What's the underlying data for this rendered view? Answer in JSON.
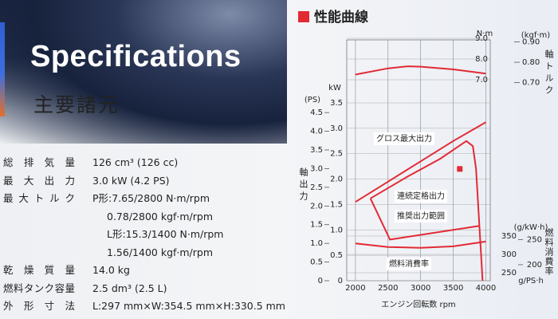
{
  "header": {
    "title": "Specifications",
    "subtitle": "主要諸元"
  },
  "specs": [
    {
      "label": "総排気量",
      "values": [
        "126 cm³ (126 cc)"
      ]
    },
    {
      "label": "最大出力",
      "values": [
        "3.0 kW (4.2 PS)"
      ]
    },
    {
      "label": "最大トルク",
      "values": [
        "P形:7.65/2800 N·m/rpm",
        "0.78/2800 kgf·m/rpm",
        "L形:15.3/1400 N·m/rpm",
        "1.56/1400 kgf·m/rpm"
      ]
    },
    {
      "label": "乾燥質量",
      "values": [
        "14.0 kg"
      ]
    },
    {
      "label": "燃料タンク容量",
      "values": [
        "2.5 dm³ (2.5 L)"
      ]
    },
    {
      "label": "外形寸法",
      "values": [
        "L:297 mm×W:354.5 mm×H:330.5 mm"
      ]
    }
  ],
  "chart_data": {
    "type": "line",
    "title": "性能曲線",
    "x_label": "エンジン回転数 rpm",
    "xlim": [
      1867,
      4067
    ],
    "xticks": [
      2000,
      2500,
      3000,
      3500,
      4000
    ],
    "grid": true,
    "power_axis": {
      "label": "軸出力",
      "unit": "kW",
      "lim": [
        0,
        3.5
      ],
      "ticks": [
        0,
        0.5,
        {
          "value": 1,
          "label": "1.0"
        },
        1.5,
        {
          "value": 2,
          "label": "2.0"
        },
        2.5,
        {
          "value": 3,
          "label": "3.0"
        },
        3.5
      ]
    },
    "ps_axis": {
      "unit": "(PS)",
      "lim": [
        0,
        4.76
      ],
      "ticks": [
        0,
        0.5,
        {
          "value": 1,
          "label": "1.0"
        },
        1.5,
        {
          "value": 2,
          "label": "2.0"
        },
        2.5,
        {
          "value": 3,
          "label": "3.0"
        },
        3.5,
        {
          "value": 4,
          "label": "4.0"
        },
        4.5
      ]
    },
    "torque_axis": {
      "label": "軸トルク",
      "unit": "N·m",
      "lim": [
        7,
        9
      ],
      "ticks": [
        {
          "value": 7,
          "label": "7.0"
        },
        {
          "value": 8,
          "label": "8.0"
        },
        {
          "value": 9,
          "label": "9.0"
        }
      ]
    },
    "torque_kgf_axis": {
      "unit": "(kgf·m)",
      "lim": [
        0.714,
        0.918
      ],
      "ticks": [
        {
          "value": 0.7,
          "label": "0.70"
        },
        {
          "value": 0.8,
          "label": "0.80"
        },
        {
          "value": 0.9,
          "label": "0.90"
        }
      ]
    },
    "fuel_axis": {
      "label": "燃料消費率",
      "unit": "(g/kW·h)",
      "lim": [
        250,
        350
      ],
      "ticks": [
        250,
        300,
        350
      ]
    },
    "fuel_ps_axis": {
      "unit": "g/PS·h",
      "lim": [
        184,
        257
      ],
      "ticks": [
        200,
        250
      ]
    },
    "series": [
      {
        "name": "グロス最大出力",
        "color": "#e22a35",
        "axis": "power",
        "x": [
          2000,
          2500,
          3000,
          3500,
          4000
        ],
        "values": [
          1.55,
          1.95,
          2.35,
          2.75,
          3.12
        ]
      },
      {
        "name": "連続定格出力",
        "color": "#e22a35",
        "axis": "power",
        "x": [
          2230,
          2800,
          3300,
          3700,
          3800,
          3850,
          3950
        ],
        "values": [
          1.62,
          2.05,
          2.4,
          2.75,
          2.65,
          2.2,
          0
        ]
      },
      {
        "name": "推奨出力範囲",
        "color": "#e22a35",
        "axis": "power",
        "x": [
          2230,
          2530,
          3900
        ],
        "values": [
          1.62,
          0.81,
          1.08
        ]
      },
      {
        "name": "燃料消費率",
        "color": "#e22a35",
        "axis": "fuel",
        "x": [
          2000,
          2500,
          3000,
          3500,
          4000
        ],
        "values": [
          330,
          320,
          318,
          322,
          335
        ]
      },
      {
        "color": "#e22a35",
        "axis": "torque",
        "x": [
          2000,
          2500,
          2800,
          3000,
          3500,
          4000
        ],
        "values": [
          7.25,
          7.55,
          7.65,
          7.63,
          7.5,
          7.3
        ]
      }
    ],
    "rated_point": {
      "color": "#e22a35",
      "x": 3600,
      "value": 2.2
    }
  }
}
